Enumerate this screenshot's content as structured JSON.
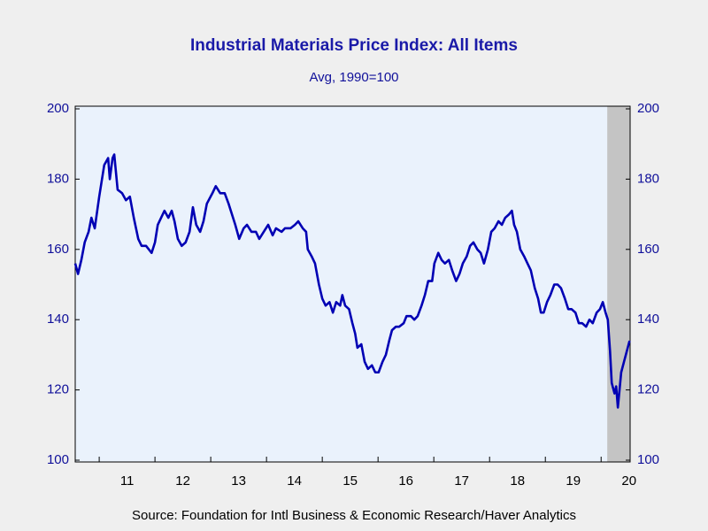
{
  "chart_data": {
    "type": "line",
    "title": "Industrial Materials Price Index: All Items",
    "subtitle": "Avg, 1990=100",
    "source": "Source:  Foundation for Intl Business & Economic Research/Haver Analytics",
    "x": [
      2010.57,
      2010.62,
      2010.68,
      2010.74,
      2010.81,
      2010.86,
      2010.92,
      2011.0,
      2011.09,
      2011.16,
      2011.19,
      2011.24,
      2011.27,
      2011.33,
      2011.41,
      2011.48,
      2011.55,
      2011.62,
      2011.7,
      2011.76,
      2011.84,
      2011.94,
      2012.0,
      2012.05,
      2012.11,
      2012.17,
      2012.24,
      2012.3,
      2012.35,
      2012.41,
      2012.48,
      2012.55,
      2012.62,
      2012.68,
      2012.74,
      2012.81,
      2012.87,
      2012.93,
      2013.03,
      2013.09,
      2013.17,
      2013.25,
      2013.32,
      2013.38,
      2013.44,
      2013.51,
      2013.59,
      2013.65,
      2013.73,
      2013.81,
      2013.87,
      2013.95,
      2014.03,
      2014.11,
      2014.17,
      2014.27,
      2014.33,
      2014.43,
      2014.51,
      2014.57,
      2014.65,
      2014.71,
      2014.74,
      2014.81,
      2014.87,
      2014.94,
      2015.0,
      2015.06,
      2015.13,
      2015.19,
      2015.25,
      2015.32,
      2015.36,
      2015.41,
      2015.48,
      2015.54,
      2015.59,
      2015.63,
      2015.7,
      2015.76,
      2015.82,
      2015.89,
      2015.95,
      2016.01,
      2016.08,
      2016.14,
      2016.2,
      2016.25,
      2016.32,
      2016.38,
      2016.46,
      2016.51,
      2016.59,
      2016.65,
      2016.71,
      2016.78,
      2016.84,
      2016.9,
      2016.97,
      2017.01,
      2017.08,
      2017.14,
      2017.2,
      2017.27,
      2017.33,
      2017.4,
      2017.46,
      2017.52,
      2017.59,
      2017.65,
      2017.71,
      2017.78,
      2017.84,
      2017.9,
      2017.97,
      2018.03,
      2018.09,
      2018.16,
      2018.22,
      2018.28,
      2018.35,
      2018.4,
      2018.44,
      2018.49,
      2018.55,
      2018.62,
      2018.68,
      2018.74,
      2018.81,
      2018.87,
      2018.92,
      2018.97,
      2019.03,
      2019.09,
      2019.16,
      2019.22,
      2019.28,
      2019.35,
      2019.41,
      2019.47,
      2019.54,
      2019.6,
      2019.66,
      2019.73,
      2019.79,
      2019.85,
      2019.92,
      2019.98,
      2020.03,
      2020.08,
      2020.12,
      2020.16,
      2020.19,
      2020.24,
      2020.27,
      2020.3,
      2020.33,
      2020.36,
      2020.41,
      2020.46,
      2020.51
    ],
    "series": [
      {
        "color": "#0000b4",
        "values": [
          156,
          153,
          157,
          162,
          165,
          169,
          166,
          175,
          184,
          186,
          180,
          186,
          187,
          177,
          176,
          174,
          175,
          169,
          163,
          161,
          161,
          159,
          162,
          167,
          169,
          171,
          169,
          171,
          168,
          163,
          161,
          162,
          165,
          172,
          167,
          165,
          168,
          173,
          176,
          178,
          176,
          176,
          173,
          170,
          167,
          163,
          166,
          167,
          165,
          165,
          163,
          165,
          167,
          164,
          166,
          165,
          166,
          166,
          167,
          168,
          166,
          165,
          160,
          158,
          156,
          150,
          146,
          144,
          145,
          142,
          145,
          144,
          147,
          144,
          143,
          139,
          136,
          132,
          133,
          128,
          126,
          127,
          125,
          125,
          128,
          130,
          134,
          137,
          138,
          138,
          139,
          141,
          141,
          140,
          141,
          144,
          147,
          151,
          151,
          156,
          159,
          157,
          156,
          157,
          154,
          151,
          153,
          156,
          158,
          161,
          162,
          160,
          159,
          156,
          160,
          165,
          166,
          168,
          167,
          169,
          170,
          171,
          167,
          165,
          160,
          158,
          156,
          154,
          149,
          146,
          142,
          142,
          145,
          147,
          150,
          150,
          149,
          146,
          143,
          143,
          142,
          139,
          139,
          138,
          140,
          139,
          142,
          143,
          145,
          142,
          140,
          131,
          122,
          119,
          121,
          115,
          120,
          125,
          128,
          131,
          134
        ]
      }
    ],
    "xlim": [
      2010.57,
      2020.52
    ],
    "xticks": [
      {
        "value": 2011,
        "label": "11"
      },
      {
        "value": 2012,
        "label": "12"
      },
      {
        "value": 2013,
        "label": "13"
      },
      {
        "value": 2014,
        "label": "14"
      },
      {
        "value": 2015,
        "label": "15"
      },
      {
        "value": 2016,
        "label": "16"
      },
      {
        "value": 2017,
        "label": "17"
      },
      {
        "value": 2018,
        "label": "18"
      },
      {
        "value": 2019,
        "label": "19"
      },
      {
        "value": 2020,
        "label": "20"
      }
    ],
    "ylim": [
      100,
      200
    ],
    "yticks": [
      100,
      120,
      140,
      160,
      180,
      200
    ],
    "recession_start": 2020.11,
    "grid": false
  }
}
